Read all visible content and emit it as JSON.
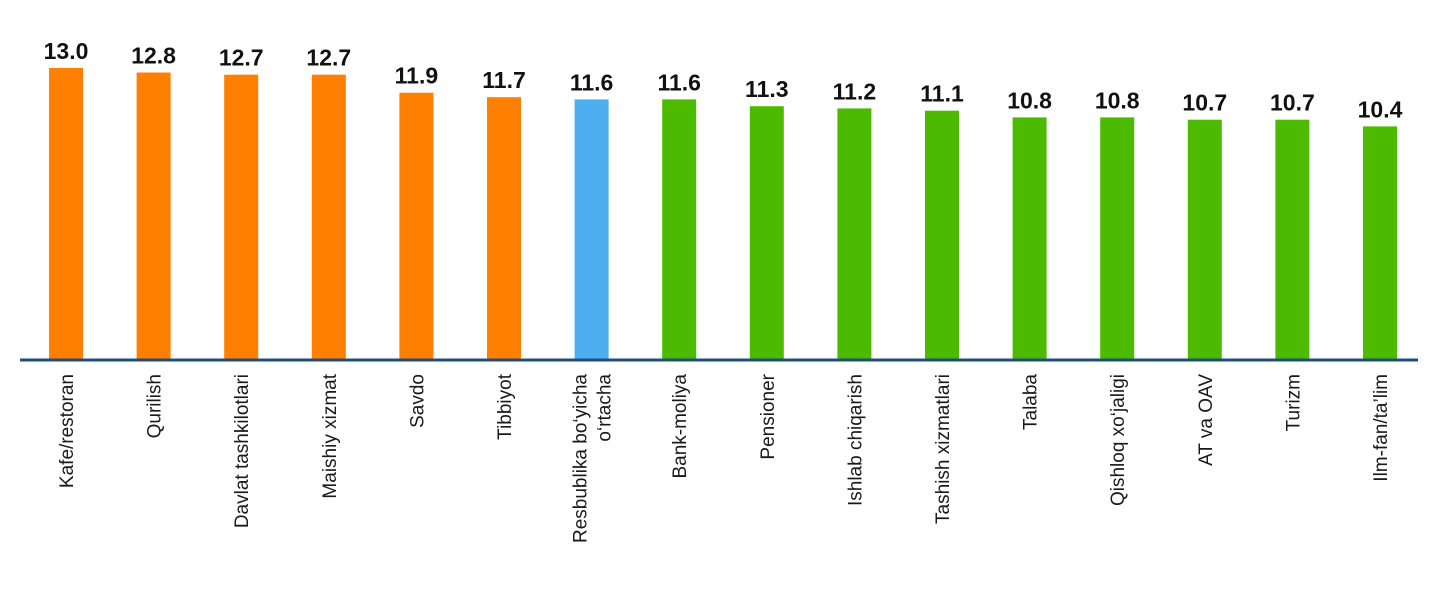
{
  "chart_data": {
    "type": "bar",
    "title": "",
    "xlabel": "",
    "ylabel": "",
    "categories": [
      [
        "Kafe/restoran"
      ],
      [
        "Qurilish"
      ],
      [
        "Davlat tashkilotlari"
      ],
      [
        "Maishiy xizmat"
      ],
      [
        "Savdo"
      ],
      [
        "Tibbiyot"
      ],
      [
        "Resbublika bo‘yicha",
        "o‘rtacha"
      ],
      [
        "Bank-moliya"
      ],
      [
        "Pensioner"
      ],
      [
        "Ishlab chiqarish"
      ],
      [
        "Tashish xizmatlari"
      ],
      [
        "Talaba"
      ],
      [
        "Qishloq xo‘jaligi"
      ],
      [
        "AT va OAV"
      ],
      [
        "Turizm"
      ],
      [
        "Ilm-fan/ta’lim"
      ]
    ],
    "values": [
      13.0,
      12.8,
      12.7,
      12.7,
      11.9,
      11.7,
      11.6,
      11.6,
      11.3,
      11.2,
      11.1,
      10.8,
      10.8,
      10.7,
      10.7,
      10.4
    ],
    "value_labels": [
      "13.0",
      "12.8",
      "12.7",
      "12.7",
      "11.9",
      "11.7",
      "11.6",
      "11.6",
      "11.3",
      "11.2",
      "11.1",
      "10.8",
      "10.8",
      "10.7",
      "10.7",
      "10.4"
    ],
    "bar_groups": [
      "above",
      "above",
      "above",
      "above",
      "above",
      "above",
      "average",
      "below",
      "below",
      "below",
      "below",
      "below",
      "below",
      "below",
      "below",
      "below"
    ],
    "colors": {
      "above": "#FF7F00",
      "average": "#4DAEF0",
      "below": "#4CBB00",
      "axis": "#1F4E79"
    },
    "ylim": [
      0,
      13
    ],
    "grid": false,
    "legend": "none"
  }
}
